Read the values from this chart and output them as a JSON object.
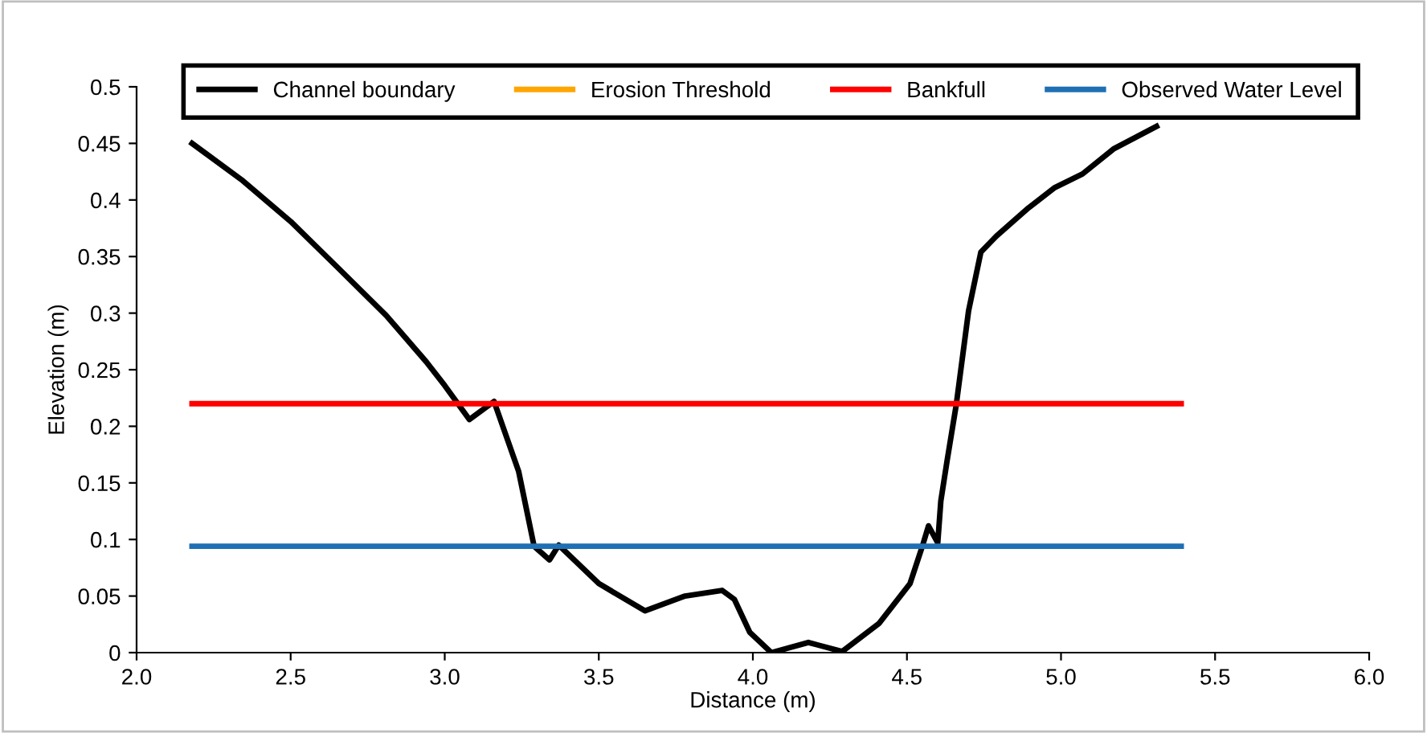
{
  "chart_data": {
    "type": "line",
    "xlabel": "Distance (m)",
    "ylabel": "Elevation (m)",
    "xlim": [
      2.0,
      6.0
    ],
    "ylim": [
      0,
      0.5
    ],
    "xticks": [
      {
        "value": 2.0,
        "label": "2.0"
      },
      {
        "value": 2.5,
        "label": "2.5"
      },
      {
        "value": 3.0,
        "label": "3.0"
      },
      {
        "value": 3.5,
        "label": "3.5"
      },
      {
        "value": 4.0,
        "label": "4.0"
      },
      {
        "value": 4.5,
        "label": "4.5"
      },
      {
        "value": 5.0,
        "label": "5.0"
      },
      {
        "value": 5.5,
        "label": "5.5"
      },
      {
        "value": 6.0,
        "label": "6.0"
      }
    ],
    "yticks": [
      0,
      0.05,
      0.1,
      0.15,
      0.2,
      0.25,
      0.3,
      0.35,
      0.4,
      0.45,
      0.5
    ],
    "grid": false,
    "legend": "top",
    "marker": "none",
    "line_style": "solid",
    "series": [
      {
        "name": "Channel boundary",
        "color": "#000000",
        "x": [
          2.18,
          2.34,
          2.5,
          2.65,
          2.81,
          2.94,
          3.0,
          3.08,
          3.16,
          3.24,
          3.29,
          3.34,
          3.37,
          3.5,
          3.65,
          3.78,
          3.9,
          3.94,
          3.99,
          4.06,
          4.18,
          4.29,
          4.41,
          4.51,
          4.55,
          4.57,
          4.6,
          4.61,
          4.63,
          4.66,
          4.7,
          4.74,
          4.79,
          4.89,
          4.98,
          5.07,
          5.17,
          5.31
        ],
        "values": [
          0.45,
          0.418,
          0.381,
          0.341,
          0.298,
          0.257,
          0.236,
          0.206,
          0.222,
          0.16,
          0.094,
          0.082,
          0.095,
          0.061,
          0.037,
          0.05,
          0.055,
          0.047,
          0.018,
          0.0,
          0.009,
          0.001,
          0.026,
          0.061,
          0.094,
          0.112,
          0.097,
          0.134,
          0.169,
          0.219,
          0.302,
          0.354,
          0.368,
          0.392,
          0.411,
          0.423,
          0.445,
          0.465
        ]
      },
      {
        "name": "Erosion Threshold",
        "color": "#ffa500"
      },
      {
        "name": "Bankfull",
        "color": "#ff0000",
        "x": [
          2.18,
          5.39
        ],
        "values": [
          0.22,
          0.22
        ]
      },
      {
        "name": "Observed Water Level",
        "color": "#1f6fb4",
        "x": [
          2.18,
          5.39
        ],
        "values": [
          0.094,
          0.094
        ]
      }
    ]
  }
}
